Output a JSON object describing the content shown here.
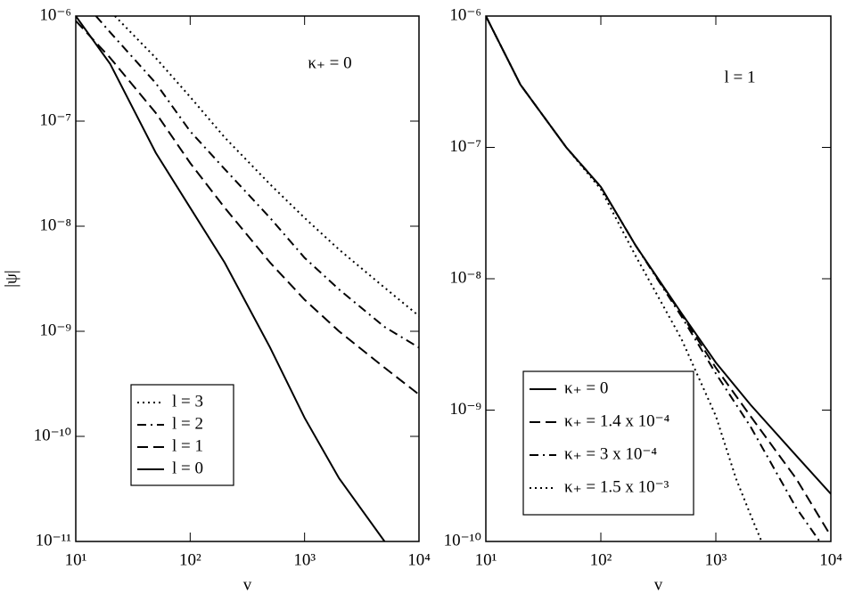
{
  "chart_data": [
    {
      "type": "line",
      "xlabel": "v",
      "ylabel": "|ψ|",
      "xscale": "log",
      "yscale": "log",
      "xlim": [
        10,
        10000
      ],
      "ylim": [
        1e-11,
        1e-06
      ],
      "xticks": [
        {
          "value": 10,
          "label": "10¹"
        },
        {
          "value": 100,
          "label": "10²"
        },
        {
          "value": 1000,
          "label": "10³"
        },
        {
          "value": 10000,
          "label": "10⁴"
        }
      ],
      "yticks": [
        {
          "value": 1e-11,
          "label": "10⁻¹¹"
        },
        {
          "value": 1e-10,
          "label": "10⁻¹⁰"
        },
        {
          "value": 1e-09,
          "label": "10⁻⁹"
        },
        {
          "value": 1e-08,
          "label": "10⁻⁸"
        },
        {
          "value": 1e-07,
          "label": "10⁻⁷"
        },
        {
          "value": 1e-06,
          "label": "10⁻⁶"
        }
      ],
      "annotation": "κ₊ = 0",
      "legend": "lower left",
      "series": [
        {
          "name": "l = 3",
          "color": "#000000",
          "dash": "dot",
          "x": [
            22,
            50,
            100,
            200,
            500,
            1000,
            2000,
            5000,
            10000
          ],
          "values": [
            1e-06,
            4e-07,
            1.7e-07,
            7e-08,
            2.5e-08,
            1.2e-08,
            6e-09,
            2.6e-09,
            1.4e-09
          ]
        },
        {
          "name": "l = 2",
          "color": "#000000",
          "dash": "dashdot",
          "x": [
            15,
            20,
            50,
            100,
            200,
            500,
            1000,
            2000,
            5000,
            10000
          ],
          "values": [
            1e-06,
            7e-07,
            2.3e-07,
            8e-08,
            3.5e-08,
            1.2e-08,
            5e-09,
            2.5e-09,
            1.1e-09,
            7e-10
          ]
        },
        {
          "name": "l = 1",
          "color": "#000000",
          "dash": "dash",
          "x": [
            10,
            20,
            50,
            100,
            200,
            500,
            1000,
            2000,
            5000,
            10000
          ],
          "values": [
            9e-07,
            4e-07,
            1.2e-07,
            4e-08,
            1.5e-08,
            4.5e-09,
            2e-09,
            1e-09,
            4.5e-10,
            2.5e-10
          ]
        },
        {
          "name": "l = 0",
          "color": "#000000",
          "dash": "solid",
          "x": [
            10,
            20,
            50,
            100,
            200,
            500,
            1000,
            2000,
            5000
          ],
          "values": [
            1e-06,
            3.5e-07,
            5e-08,
            1.5e-08,
            4.5e-09,
            7e-10,
            1.5e-10,
            4e-11,
            1e-11
          ]
        }
      ]
    },
    {
      "type": "line",
      "xlabel": "v",
      "xscale": "log",
      "yscale": "log",
      "xlim": [
        10,
        10000
      ],
      "ylim": [
        1e-10,
        1e-06
      ],
      "xticks": [
        {
          "value": 10,
          "label": "10¹"
        },
        {
          "value": 100,
          "label": "10²"
        },
        {
          "value": 1000,
          "label": "10³"
        },
        {
          "value": 10000,
          "label": "10⁴"
        }
      ],
      "yticks": [
        {
          "value": 1e-10,
          "label": "10⁻¹⁰"
        },
        {
          "value": 1e-09,
          "label": "10⁻⁹"
        },
        {
          "value": 1e-08,
          "label": "10⁻⁸"
        },
        {
          "value": 1e-07,
          "label": "10⁻⁷"
        },
        {
          "value": 1e-06,
          "label": "10⁻⁶"
        }
      ],
      "annotation": "l = 1",
      "legend": "lower right",
      "series": [
        {
          "name": "κ₊ = 0",
          "color": "#000000",
          "dash": "solid",
          "x": [
            10,
            20,
            50,
            100,
            200,
            500,
            1000,
            2000,
            5000,
            10000
          ],
          "values": [
            1e-06,
            3e-07,
            1e-07,
            5e-08,
            1.8e-08,
            5.5e-09,
            2.3e-09,
            1.1e-09,
            4.5e-10,
            2.3e-10
          ]
        },
        {
          "name": "κ₊ = 1.4 x 10⁻⁴",
          "color": "#000000",
          "dash": "dash",
          "x": [
            10,
            20,
            50,
            100,
            200,
            500,
            1000,
            2000,
            5000,
            10000
          ],
          "values": [
            1e-06,
            3e-07,
            1e-07,
            5e-08,
            1.8e-08,
            5.4e-09,
            2.1e-09,
            9e-10,
            3e-10,
            1.1e-10
          ]
        },
        {
          "name": "κ₊ = 3 x 10⁻⁴",
          "color": "#000000",
          "dash": "dashdot",
          "x": [
            10,
            20,
            50,
            100,
            200,
            500,
            1000,
            2000,
            5000,
            8000
          ],
          "values": [
            1e-06,
            3e-07,
            1e-07,
            5e-08,
            1.8e-08,
            5.2e-09,
            1.9e-09,
            7.5e-10,
            1.8e-10,
            1e-10
          ]
        },
        {
          "name": "κ₊ = 1.5 x 10⁻³",
          "color": "#000000",
          "dash": "dot",
          "x": [
            10,
            20,
            50,
            100,
            200,
            500,
            1000,
            1500,
            2000,
            2500
          ],
          "values": [
            1e-06,
            3e-07,
            1e-07,
            4.8e-08,
            1.5e-08,
            3.5e-09,
            9e-10,
            3e-10,
            1.6e-10,
            1e-10
          ]
        }
      ]
    }
  ]
}
